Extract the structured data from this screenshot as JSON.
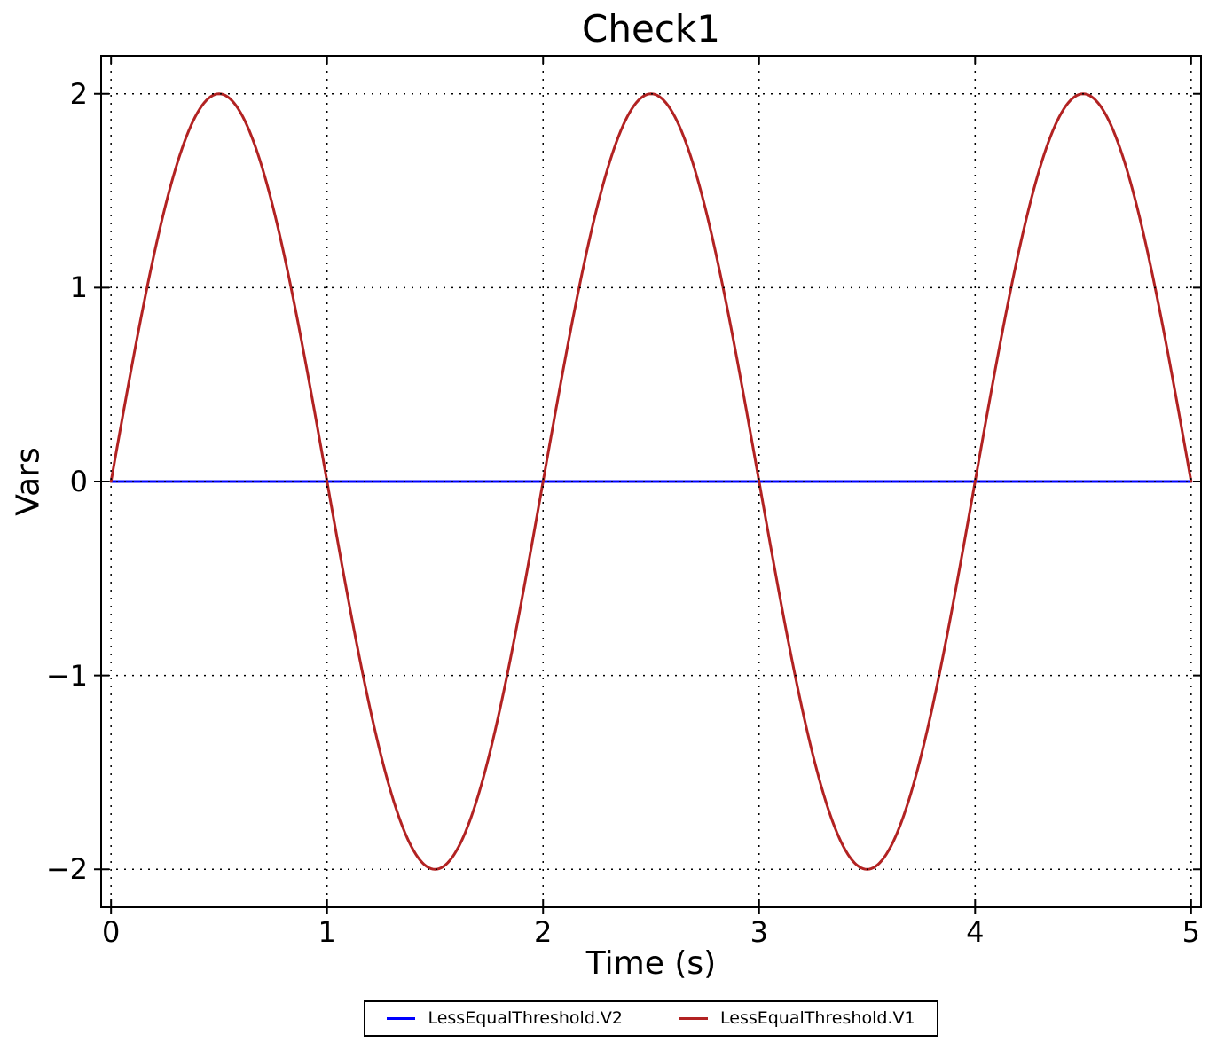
{
  "figure": {
    "background": "#ffffff",
    "frame_color": "#000000"
  },
  "chart_data": {
    "type": "line",
    "title": "Check1",
    "xlabel": "Time (s)",
    "ylabel": "Vars",
    "xlim": [
      -0.05,
      5.05
    ],
    "ylim": [
      -2.2,
      2.2
    ],
    "xticks": {
      "values": [
        0,
        1,
        2,
        3,
        4,
        5
      ],
      "labels": [
        "0",
        "1",
        "2",
        "3",
        "4",
        "5"
      ]
    },
    "yticks": {
      "values": [
        -2,
        -1,
        0,
        1,
        2
      ],
      "labels": [
        "−2",
        "−1",
        "0",
        "1",
        "2"
      ]
    },
    "grid": {
      "show": true,
      "line_style": "dotted",
      "color": "#000000",
      "on_top_of_lines": true
    },
    "series": [
      {
        "name": "LessEqualThreshold.V2",
        "color": "#0000ff",
        "line_width": 3,
        "x_range": [
          0,
          5
        ],
        "shape": {
          "kind": "constant",
          "value": 0
        },
        "key_points": [
          [
            0,
            0
          ],
          [
            5,
            0
          ]
        ]
      },
      {
        "name": "LessEqualThreshold.V1",
        "color": "#b22222",
        "line_width": 3,
        "x_range": [
          0,
          5
        ],
        "shape": {
          "kind": "sine",
          "amplitude": 2,
          "period": 2,
          "phase": 0
        },
        "key_points": [
          [
            0,
            0
          ],
          [
            0.5,
            2
          ],
          [
            1,
            0
          ],
          [
            1.5,
            -2
          ],
          [
            2,
            0
          ],
          [
            2.5,
            2
          ],
          [
            3,
            0
          ],
          [
            3.5,
            -2
          ],
          [
            4,
            0
          ],
          [
            4.5,
            2
          ],
          [
            5,
            0
          ]
        ]
      }
    ],
    "legend": {
      "position": "bottom-center-outside",
      "border_color": "#000000",
      "entries": [
        {
          "label": "LessEqualThreshold.V2",
          "color": "#0000ff"
        },
        {
          "label": "LessEqualThreshold.V1",
          "color": "#b22222"
        }
      ]
    }
  }
}
